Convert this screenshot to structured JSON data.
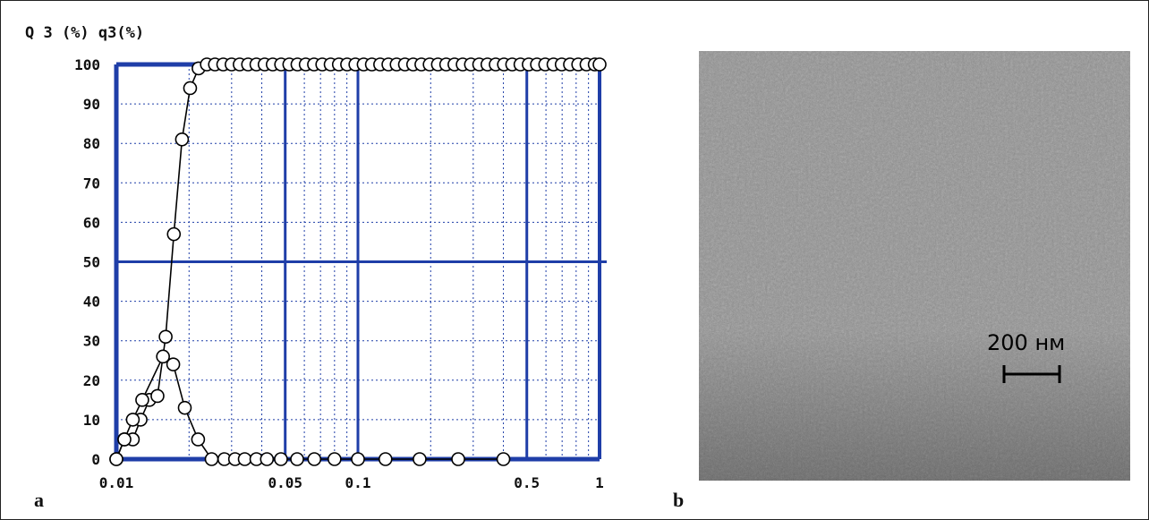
{
  "panel_a_label": "a",
  "panel_b_label": "b",
  "micrograph": {
    "scale_bar_label": "200 нм"
  },
  "chart_data": {
    "type": "line",
    "title": "",
    "y_axis_title": "Q 3 (%) q3(%)",
    "x_scale": "log",
    "xlim": [
      0.01,
      1
    ],
    "ylim": [
      0,
      100
    ],
    "x_ticks": [
      "0.01",
      "0.05",
      "0.1",
      "0.5",
      "1"
    ],
    "y_ticks": [
      "0",
      "10",
      "20",
      "30",
      "40",
      "50",
      "60",
      "70",
      "80",
      "90",
      "100"
    ],
    "grid": true,
    "series": [
      {
        "key": "Q3",
        "x": [
          0.01,
          0.0108,
          0.0117,
          0.0126,
          0.0137,
          0.0148,
          0.016,
          0.0173,
          0.0187,
          0.0202,
          0.0219,
          0.0237,
          0.0256,
          0.0277,
          0.03,
          0.0324,
          0.0351,
          0.038,
          0.0411,
          0.0444,
          0.0481,
          0.052,
          0.0562,
          0.0608,
          0.0658,
          0.0712,
          0.0771,
          0.0834,
          0.0902,
          0.0976,
          0.1056,
          0.1142,
          0.1236,
          0.1337,
          0.1446,
          0.1565,
          0.1693,
          0.1831,
          0.1981,
          0.2143,
          0.2319,
          0.2509,
          0.2714,
          0.2936,
          0.3176,
          0.3436,
          0.3717,
          0.4021,
          0.435,
          0.4706,
          0.5092,
          0.5508,
          0.5959,
          0.6447,
          0.6974,
          0.7545,
          0.8162,
          0.883,
          0.9552,
          1.0
        ],
        "values": [
          0,
          5,
          5,
          10,
          15,
          16,
          31,
          57,
          81,
          94,
          99,
          100,
          100,
          100,
          100,
          100,
          100,
          100,
          100,
          100,
          100,
          100,
          100,
          100,
          100,
          100,
          100,
          100,
          100,
          100,
          100,
          100,
          100,
          100,
          100,
          100,
          100,
          100,
          100,
          100,
          100,
          100,
          100,
          100,
          100,
          100,
          100,
          100,
          100,
          100,
          100,
          100,
          100,
          100,
          100,
          100,
          100,
          100,
          100,
          100
        ]
      },
      {
        "key": "q3",
        "values": [
          0,
          5,
          10,
          15,
          26,
          24,
          13,
          5,
          0,
          0,
          0,
          0,
          0,
          0,
          0,
          0,
          0,
          0,
          0,
          0,
          0,
          0,
          0
        ],
        "x": [
          0.01,
          0.0108,
          0.0117,
          0.0128,
          0.0156,
          0.0172,
          0.0192,
          0.0218,
          0.0248,
          0.028,
          0.031,
          0.034,
          0.038,
          0.042,
          0.048,
          0.056,
          0.066,
          0.08,
          0.1,
          0.13,
          0.18,
          0.26,
          0.4
        ]
      }
    ]
  }
}
